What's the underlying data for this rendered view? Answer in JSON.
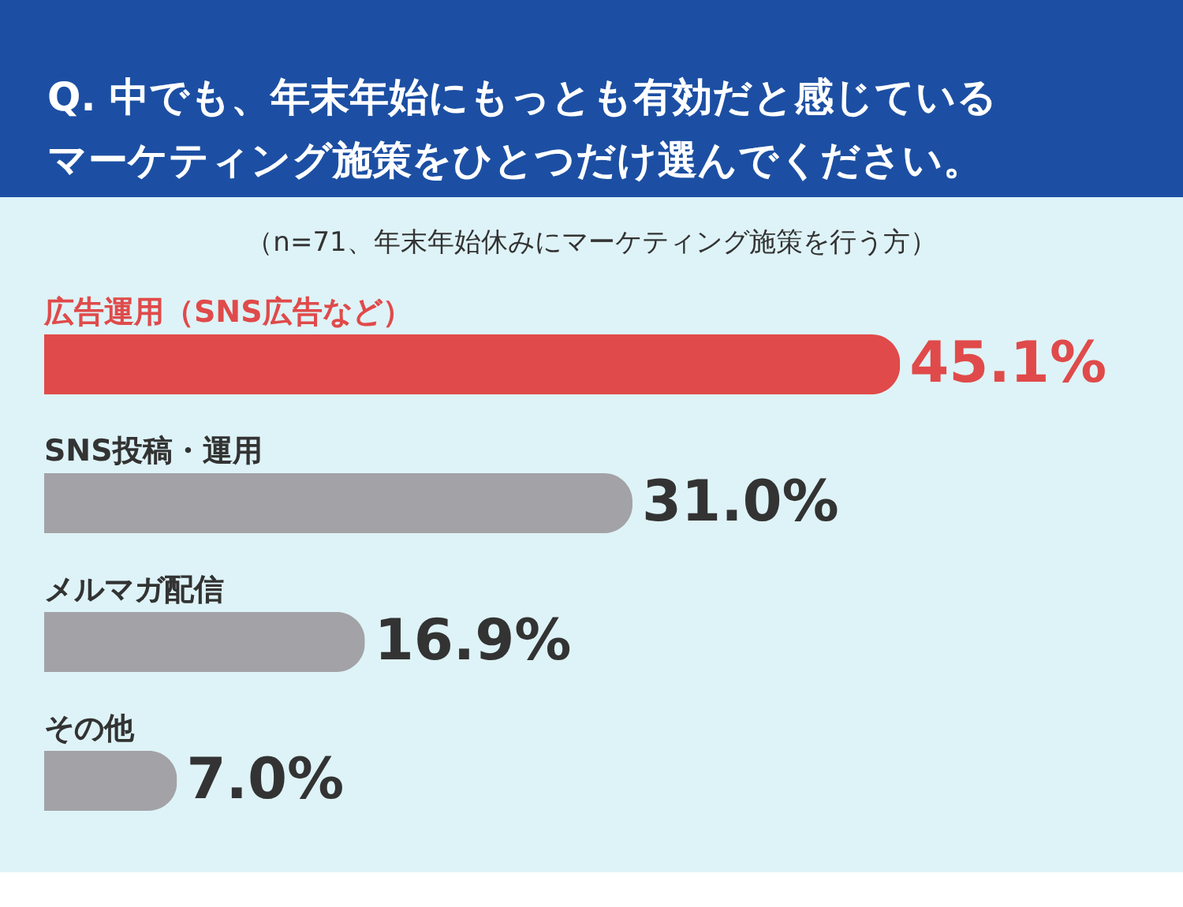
{
  "chart_data": {
    "type": "bar",
    "orientation": "horizontal",
    "title": "Q. 中でも、年末年始にもっとも有効だと感じているマーケティング施策をひとつだけ選んでください。",
    "subtitle": "（n=71、年末年始休みにマーケティング施策を行う方）",
    "categories": [
      "広告運用（SNS広告など）",
      "SNS投稿・運用",
      "メルマガ配信",
      "その他"
    ],
    "values": [
      45.1,
      31.0,
      16.9,
      7.0
    ],
    "colors": [
      "#e04a4a",
      "#a2a2a7",
      "#a2a2a7",
      "#a2a2a7"
    ],
    "value_labels": [
      "45.1%",
      "31.0%",
      "16.9%",
      "7.0%"
    ]
  }
}
